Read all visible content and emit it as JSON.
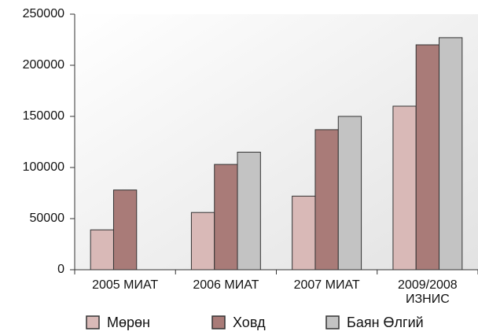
{
  "chart_data": {
    "type": "bar",
    "categories": [
      "2005 МИАТ",
      "2006 МИАТ",
      "2007 МИАТ",
      "2009/2008\nИЗНИС"
    ],
    "series": [
      {
        "name": "Мөрөн",
        "color": "#d9b9b7",
        "values": [
          39000,
          56000,
          72000,
          160000
        ]
      },
      {
        "name": "Ховд",
        "color": "#a97b78",
        "values": [
          78000,
          103000,
          137000,
          220000
        ]
      },
      {
        "name": "Баян Өлгий",
        "color": "#c3c3c3",
        "values": [
          null,
          115000,
          150000,
          227000
        ]
      }
    ],
    "ylim": [
      0,
      250000
    ],
    "yticks": [
      0,
      50000,
      100000,
      150000,
      200000,
      250000
    ],
    "legend": "bottom"
  }
}
